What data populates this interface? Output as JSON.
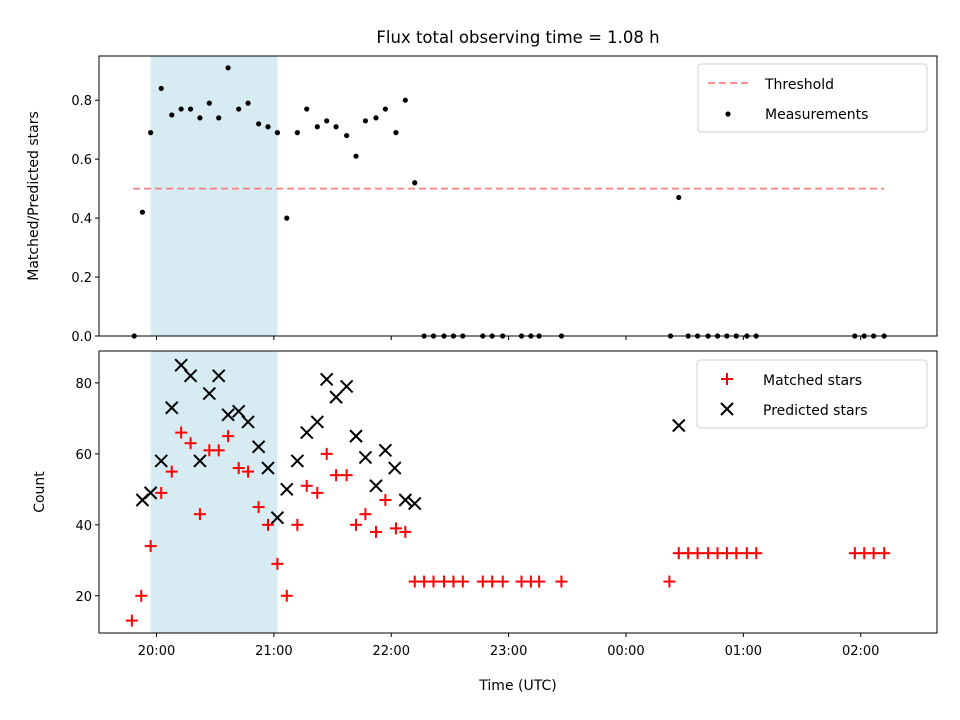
{
  "chart_data": [
    {
      "type": "scatter",
      "title": "Flux total observing time = 1.08 h",
      "xlabel": "",
      "ylabel": "Matched/Predicted stars",
      "xlim": [
        -0.49,
        6.65
      ],
      "ylim": [
        0.0,
        0.95
      ],
      "yticks": [
        0.0,
        0.2,
        0.4,
        0.6,
        0.8
      ],
      "ytick_labels": [
        "0.0",
        "0.2",
        "0.4",
        "0.6",
        "0.8"
      ],
      "xticks": [
        0,
        1,
        2,
        3,
        4,
        5,
        6
      ],
      "shaded_region": [
        -0.05,
        1.03
      ],
      "legend": "top-right",
      "series": [
        {
          "name": "Threshold",
          "kind": "line",
          "color": "#ff7f7f",
          "x": [
            -0.2,
            6.2
          ],
          "y": [
            0.5,
            0.5
          ]
        },
        {
          "name": "Measurements",
          "kind": "scatter",
          "color": "#000000",
          "x": [
            -0.19,
            -0.12,
            -0.05,
            0.04,
            0.13,
            0.21,
            0.29,
            0.37,
            0.45,
            0.53,
            0.61,
            0.7,
            0.78,
            0.87,
            0.95,
            1.03,
            1.11,
            1.2,
            1.28,
            1.37,
            1.45,
            1.53,
            1.62,
            1.7,
            1.78,
            1.87,
            1.95,
            2.04,
            2.12,
            2.2,
            2.28,
            2.36,
            2.45,
            2.53,
            2.61,
            2.78,
            2.86,
            2.95,
            3.11,
            3.19,
            3.26,
            3.45,
            4.38,
            4.45,
            4.53,
            4.61,
            4.7,
            4.78,
            4.86,
            4.94,
            5.03,
            5.11,
            5.95,
            6.03,
            6.11,
            6.2
          ],
          "y": [
            0.0,
            0.42,
            0.69,
            0.84,
            0.75,
            0.77,
            0.77,
            0.74,
            0.79,
            0.74,
            0.91,
            0.77,
            0.79,
            0.72,
            0.71,
            0.69,
            0.4,
            0.69,
            0.77,
            0.71,
            0.73,
            0.71,
            0.68,
            0.61,
            0.73,
            0.74,
            0.77,
            0.69,
            0.8,
            0.52,
            0.0,
            0.0,
            0.0,
            0.0,
            0.0,
            0.0,
            0.0,
            0.0,
            0.0,
            0.0,
            0.0,
            0.0,
            0.0,
            0.47,
            0.0,
            0.0,
            0.0,
            0.0,
            0.0,
            0.0,
            0.0,
            0.0,
            0.0,
            0.0,
            0.0,
            0.0
          ]
        }
      ]
    },
    {
      "type": "scatter",
      "title": "",
      "xlabel": "Time (UTC)",
      "ylabel": "Count",
      "xlim": [
        -0.49,
        6.65
      ],
      "ylim": [
        9.5,
        89
      ],
      "yticks": [
        20,
        40,
        60,
        80
      ],
      "ytick_labels": [
        "20",
        "40",
        "60",
        "80"
      ],
      "xticks": [
        0,
        1,
        2,
        3,
        4,
        5,
        6
      ],
      "xtick_labels": [
        "20:00",
        "21:00",
        "22:00",
        "23:00",
        "00:00",
        "01:00",
        "02:00"
      ],
      "shaded_region": [
        -0.05,
        1.03
      ],
      "legend": "top-right",
      "series": [
        {
          "name": "Matched stars",
          "marker": "plus",
          "color": "#ff0000",
          "x": [
            -0.21,
            -0.13,
            -0.05,
            0.04,
            0.13,
            0.21,
            0.29,
            0.37,
            0.45,
            0.53,
            0.61,
            0.7,
            0.78,
            0.87,
            0.95,
            1.03,
            1.11,
            1.2,
            1.28,
            1.37,
            1.45,
            1.53,
            1.62,
            1.7,
            1.78,
            1.87,
            1.95,
            2.04,
            2.12,
            2.2,
            2.28,
            2.36,
            2.45,
            2.53,
            2.61,
            2.78,
            2.86,
            2.95,
            3.11,
            3.19,
            3.26,
            3.45,
            4.37,
            4.45,
            4.53,
            4.61,
            4.7,
            4.78,
            4.86,
            4.94,
            5.03,
            5.11,
            5.95,
            6.03,
            6.11,
            6.2
          ],
          "y": [
            13,
            20,
            34,
            49,
            55,
            66,
            63,
            43,
            61,
            61,
            65,
            56,
            55,
            45,
            40,
            29,
            20,
            40,
            51,
            49,
            60,
            54,
            54,
            40,
            43,
            38,
            47,
            39,
            38,
            24,
            24,
            24,
            24,
            24,
            24,
            24,
            24,
            24,
            24,
            24,
            24,
            24,
            24,
            32,
            32,
            32,
            32,
            32,
            32,
            32,
            32,
            32,
            32,
            32,
            32,
            32
          ]
        },
        {
          "name": "Predicted stars",
          "marker": "x",
          "color": "#000000",
          "x": [
            -0.12,
            -0.05,
            0.04,
            0.13,
            0.21,
            0.29,
            0.37,
            0.45,
            0.53,
            0.61,
            0.7,
            0.78,
            0.87,
            0.95,
            1.03,
            1.11,
            1.2,
            1.28,
            1.37,
            1.45,
            1.53,
            1.62,
            1.7,
            1.78,
            1.87,
            1.95,
            2.03,
            2.12,
            2.2,
            4.45
          ],
          "y": [
            47,
            49,
            58,
            73,
            85,
            82,
            58,
            77,
            82,
            71,
            72,
            69,
            62,
            56,
            42,
            50,
            58,
            66,
            69,
            81,
            76,
            79,
            65,
            59,
            51,
            61,
            56,
            47,
            46,
            68
          ]
        }
      ]
    }
  ]
}
